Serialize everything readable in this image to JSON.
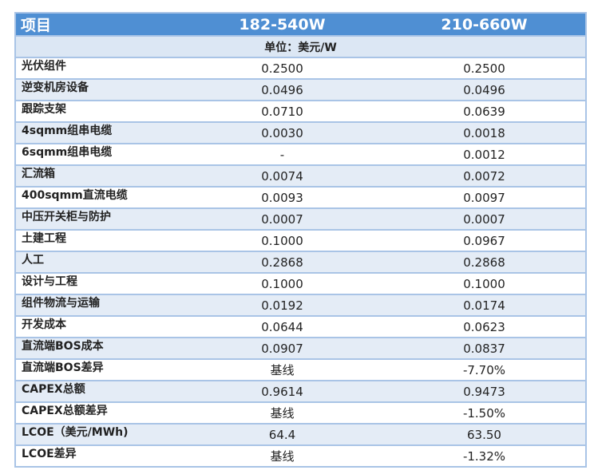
{
  "header": {
    "item": "项目",
    "col1": "182-540W",
    "col2": "210-660W"
  },
  "unit": "单位：美元/W",
  "rows": [
    {
      "label": "光伏组件",
      "v1": "0.2500",
      "v2": "0.2500"
    },
    {
      "label": "逆变机房设备",
      "v1": "0.0496",
      "v2": "0.0496"
    },
    {
      "label": "跟踪支架",
      "v1": "0.0710",
      "v2": "0.0639"
    },
    {
      "label": "4sqmm组串电缆",
      "v1": "0.0030",
      "v2": "0.0018"
    },
    {
      "label": "6sqmm组串电缆",
      "v1": "-",
      "v2": "0.0012"
    },
    {
      "label": "汇流箱",
      "v1": "0.0074",
      "v2": "0.0072"
    },
    {
      "label": "400sqmm直流电缆",
      "v1": "0.0093",
      "v2": "0.0097"
    },
    {
      "label": "中压开关柜与防护",
      "v1": "0.0007",
      "v2": "0.0007"
    },
    {
      "label": "土建工程",
      "v1": "0.1000",
      "v2": "0.0967"
    },
    {
      "label": "人工",
      "v1": "0.2868",
      "v2": "0.2868"
    },
    {
      "label": "设计与工程",
      "v1": "0.1000",
      "v2": "0.1000"
    },
    {
      "label": "组件物流与运输",
      "v1": "0.0192",
      "v2": "0.0174"
    },
    {
      "label": "开发成本",
      "v1": "0.0644",
      "v2": "0.0623"
    },
    {
      "label": "直流端BOS成本",
      "v1": "0.0907",
      "v2": "0.0837"
    },
    {
      "label": "直流端BOS差异",
      "v1": "基线",
      "v2": "-7.70%"
    },
    {
      "label": "CAPEX总额",
      "v1": "0.9614",
      "v2": "0.9473"
    },
    {
      "label": "CAPEX总额差异",
      "v1": "基线",
      "v2": "-1.50%"
    },
    {
      "label": "LCOE（美元/MWh)",
      "v1": "64.4",
      "v2": "63.50"
    },
    {
      "label": "LCOE差异",
      "v1": "基线",
      "v2": "-1.32%"
    }
  ],
  "colors": {
    "header_bg": "#4f8fd3",
    "alt_row": "#e4ecf6",
    "border": "#a9c4e6"
  }
}
